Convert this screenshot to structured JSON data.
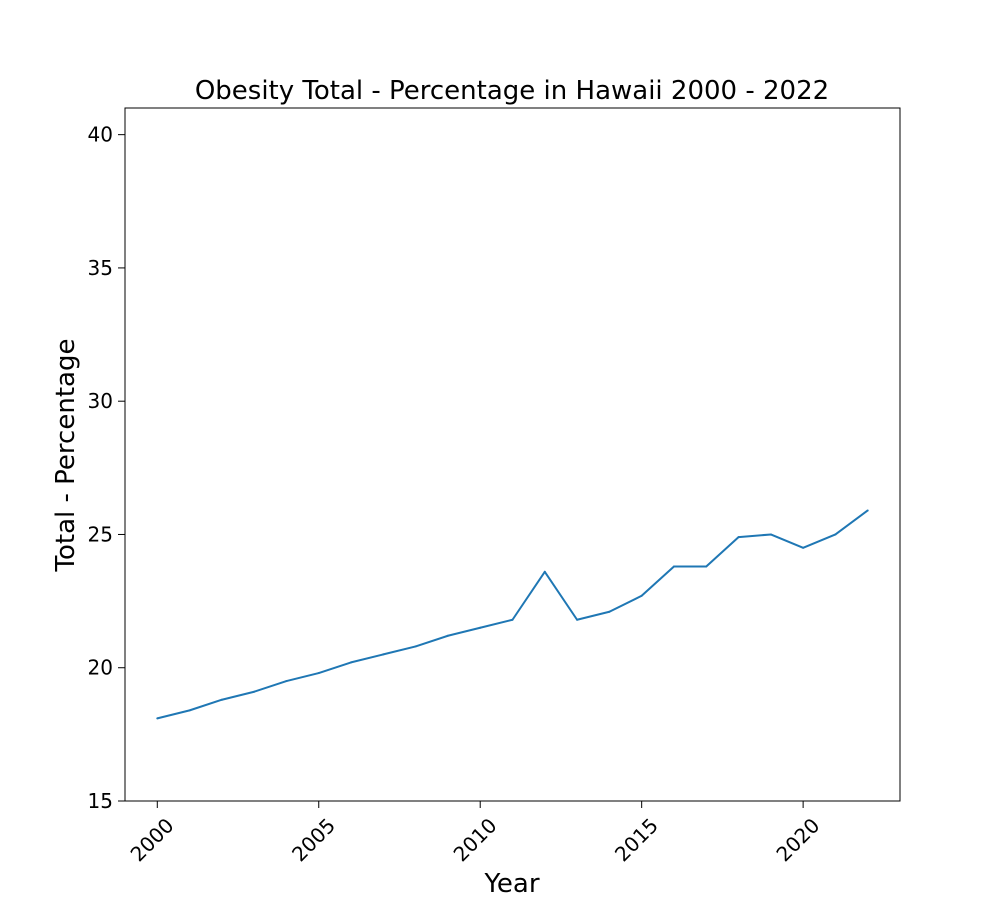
{
  "chart_data": {
    "type": "line",
    "title": "Obesity Total - Percentage in Hawaii 2000 - 2022",
    "xlabel": "Year",
    "ylabel": "Total - Percentage",
    "x": [
      2000,
      2001,
      2002,
      2003,
      2004,
      2005,
      2006,
      2007,
      2008,
      2009,
      2010,
      2011,
      2012,
      2013,
      2014,
      2015,
      2016,
      2017,
      2018,
      2019,
      2020,
      2021,
      2022
    ],
    "series": [
      {
        "values": [
          18.1,
          18.4,
          18.8,
          19.1,
          19.5,
          19.8,
          20.2,
          20.5,
          20.8,
          21.2,
          21.5,
          21.8,
          23.6,
          21.8,
          22.1,
          22.7,
          23.8,
          23.8,
          24.9,
          25.0,
          24.5,
          25.0,
          25.9
        ],
        "color": "#1f77b4"
      }
    ],
    "xlim": [
      1999,
      2023
    ],
    "ylim": [
      15,
      41
    ],
    "xticks": [
      "2000",
      "2005",
      "2010",
      "2015",
      "2020"
    ],
    "yticks": [
      "15",
      "20",
      "25",
      "30",
      "35",
      "40"
    ],
    "grid": false,
    "legend": "none"
  }
}
